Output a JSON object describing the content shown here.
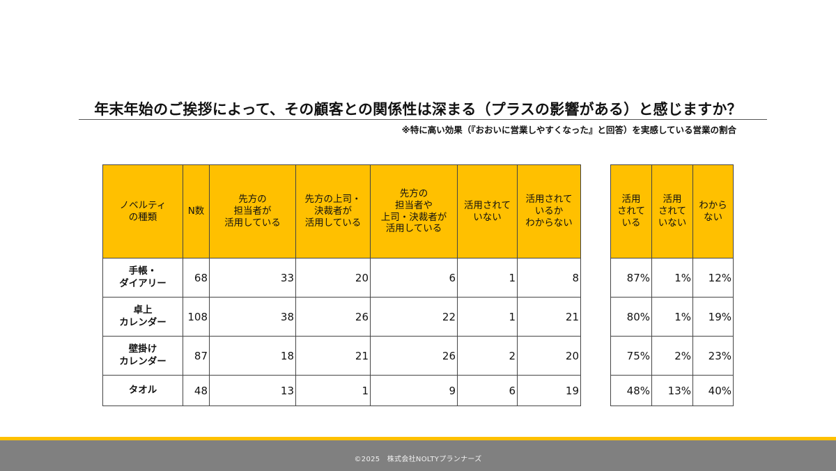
{
  "title": "年末年始のご挨拶によって、その顧客との関係性は深まる（プラスの影響がある）と感じますか？",
  "subtitle": "※特に高い効果（『おおいに営業しやすくなった』と回答）を実感している営業の割合",
  "main_table": {
    "headers": [
      [
        "ノベルティ",
        "の種類"
      ],
      [
        "N数"
      ],
      [
        "先方の",
        "担当者が",
        "活用している"
      ],
      [
        "先方の上司・",
        "決裁者が",
        "活用している"
      ],
      [
        "先方の",
        "担当者や",
        "上司・決裁者が",
        "活用している"
      ],
      [
        "活用されて",
        "いない"
      ],
      [
        "活用されて",
        "いるか",
        "わからない"
      ]
    ],
    "rows": [
      {
        "label": [
          "手帳・",
          "ダイアリー"
        ],
        "values": [
          "68",
          "33",
          "20",
          "6",
          "1",
          "8"
        ]
      },
      {
        "label": [
          "卓上",
          "カレンダー"
        ],
        "values": [
          "108",
          "38",
          "26",
          "22",
          "1",
          "21"
        ]
      },
      {
        "label": [
          "壁掛け",
          "カレンダー"
        ],
        "values": [
          "87",
          "18",
          "21",
          "26",
          "2",
          "20"
        ]
      },
      {
        "label": [
          "タオル"
        ],
        "values": [
          "48",
          "13",
          "1",
          "9",
          "6",
          "19"
        ]
      }
    ]
  },
  "pct_table": {
    "headers": [
      [
        "活用",
        "されて",
        "いる"
      ],
      [
        "活用",
        "されて",
        "いない"
      ],
      [
        "わから",
        "ない"
      ]
    ],
    "rows": [
      [
        "87%",
        "1%",
        "12%"
      ],
      [
        "80%",
        "1%",
        "19%"
      ],
      [
        "75%",
        "2%",
        "23%"
      ],
      [
        "48%",
        "13%",
        "40%"
      ]
    ]
  },
  "colors": {
    "header_fill": "#FFC000",
    "footer_stripe": "#FFC000",
    "footer_bar": "#808080"
  },
  "footer": "©2025　株式会社NOLTYプランナーズ"
}
